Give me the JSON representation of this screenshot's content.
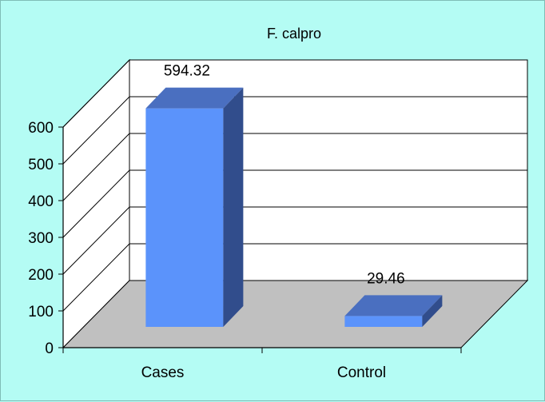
{
  "chart_data": {
    "type": "bar",
    "title": "F. calpro",
    "categories": [
      "Cases",
      "Control"
    ],
    "values": [
      594.32,
      29.46
    ],
    "data_labels": [
      "594.32",
      "29.46"
    ],
    "xlabel": "",
    "ylabel": "",
    "ylim": [
      0,
      600
    ],
    "yticks": [
      "0",
      "100",
      "200",
      "300",
      "400",
      "500",
      "600"
    ],
    "grid": true,
    "legend": "none",
    "style": "3d",
    "colors": {
      "background": "#b4fcf4",
      "wall": "#ffffff",
      "floor": "#c0c0c0",
      "bar_front": "#5b93fb",
      "bar_top": "#4a6fc0",
      "bar_side": "#314d8c"
    }
  }
}
